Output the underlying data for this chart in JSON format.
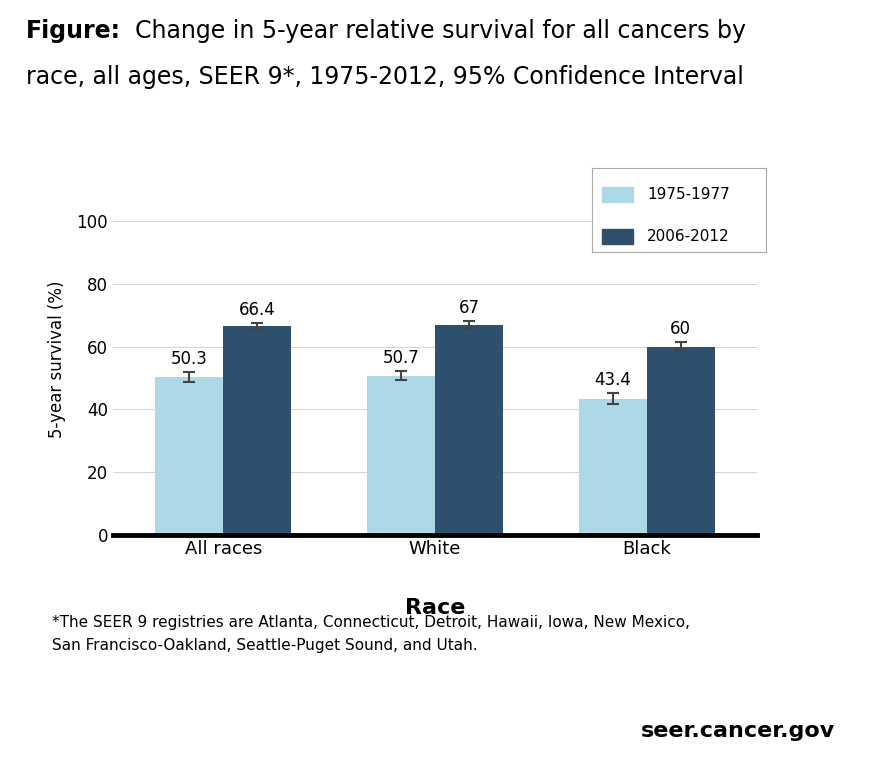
{
  "categories": [
    "All races",
    "White",
    "Black"
  ],
  "series": [
    {
      "label": "1975-1977",
      "values": [
        50.3,
        50.7,
        43.4
      ],
      "errors": [
        1.5,
        1.5,
        1.8
      ],
      "color": "#add8e6"
    },
    {
      "label": "2006-2012",
      "values": [
        66.4,
        67.0,
        60.0
      ],
      "errors": [
        1.2,
        1.2,
        1.5
      ],
      "color": "#2f4f6e"
    }
  ],
  "xlabel": "Race",
  "ylabel": "5-year survival (%)",
  "ylim": [
    0,
    112
  ],
  "yticks": [
    0,
    20,
    40,
    60,
    80,
    100
  ],
  "bar_width": 0.32,
  "title_bold": "Figure:",
  "title_rest": " Change in 5-year relative survival for all cancers by\nrace, all ages, SEER 9*, 1975-2012, 95% Confidence Interval",
  "footnote_line1": "*The SEER 9 registries are Atlanta, Connecticut, Detroit, Hawaii, Iowa, New Mexico,",
  "footnote_line2": "San Francisco-Oakland, Seattle-Puget Sound, and Utah.",
  "watermark": "seer.cancer.gov",
  "bg_color": "#ffffff"
}
